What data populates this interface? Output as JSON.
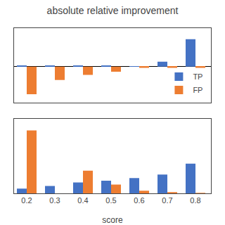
{
  "chart_data": [
    {
      "type": "bar",
      "title": "absolute relative improvement",
      "x": [
        0.2,
        0.3,
        0.4,
        0.5,
        0.6,
        0.7,
        0.8
      ],
      "series": [
        {
          "name": "TP",
          "color": "#4472C4",
          "values": [
            0.003,
            0.003,
            0.003,
            0.003,
            0.001,
            0.018,
            0.1
          ]
        },
        {
          "name": "FP",
          "color": "#ED7D31",
          "values": [
            -0.1,
            -0.048,
            -0.03,
            -0.018,
            -0.004,
            -0.004,
            -0.004
          ]
        }
      ],
      "xlim": [
        0.155,
        0.855
      ],
      "ylim": [
        -0.13,
        0.14
      ],
      "grid": false,
      "legend": "lower right",
      "tick_labels": false
    },
    {
      "type": "bar",
      "xlabel": "score",
      "x": [
        0.2,
        0.3,
        0.4,
        0.5,
        0.6,
        0.7,
        0.8
      ],
      "series": [
        {
          "name": "TP",
          "color": "#4472C4",
          "values": [
            0.055,
            0.085,
            0.125,
            0.145,
            0.175,
            0.215,
            0.34
          ]
        },
        {
          "name": "FP",
          "color": "#ED7D31",
          "values": [
            0.72,
            0.0,
            0.26,
            0.1,
            0.03,
            0.008,
            0.004
          ]
        }
      ],
      "xlim": [
        0.155,
        0.855
      ],
      "ylim": [
        0,
        0.85
      ],
      "xticks": [
        0.2,
        0.3,
        0.4,
        0.5,
        0.6,
        0.7,
        0.8
      ],
      "grid": false,
      "tick_labels": "x"
    }
  ]
}
